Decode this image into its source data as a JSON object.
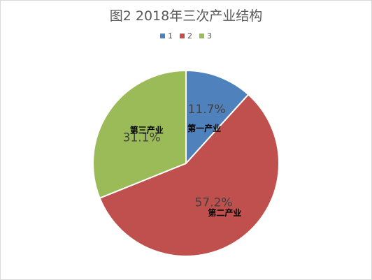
{
  "chart_data": {
    "type": "pie",
    "title": "图2 2018年三次产业结构",
    "legend_position": "top",
    "categories": [
      "1",
      "2",
      "3"
    ],
    "values": [
      11.7,
      57.2,
      31.1
    ],
    "data_labels": [
      "11.7%",
      "57.2%",
      "31.1%"
    ],
    "category_labels": [
      "第一产业",
      "第二产业",
      "第三产业"
    ],
    "colors": [
      "#4F81BD",
      "#C0504D",
      "#9BBB59"
    ]
  }
}
